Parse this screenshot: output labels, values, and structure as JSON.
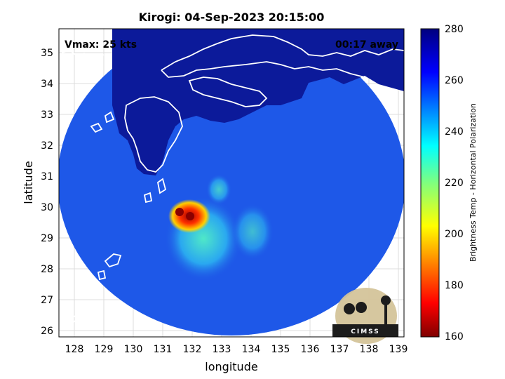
{
  "title": "Kirogi: 04-Sep-2023 20:15:00",
  "annotations": {
    "vmax": "Vmax: 25 kts",
    "away": "00:17 away"
  },
  "axes": {
    "xlabel": "longitude",
    "ylabel": "latitude",
    "xticks": [
      "128",
      "129",
      "130",
      "131",
      "132",
      "133",
      "134",
      "135",
      "136",
      "137",
      "138",
      "139"
    ],
    "yticks": [
      "35",
      "34",
      "33",
      "32",
      "31",
      "30",
      "29",
      "28",
      "27",
      "26"
    ]
  },
  "colorbar": {
    "label": "Brightness Temp - Horizontal Polarization",
    "ticks": [
      "280",
      "260",
      "240",
      "220",
      "200",
      "180",
      "160"
    ]
  },
  "logo": {
    "text": "CIMSS"
  },
  "colors": {
    "cold": "#7f0000",
    "warm": "#00007f",
    "ocean": "#1e50e6"
  }
}
